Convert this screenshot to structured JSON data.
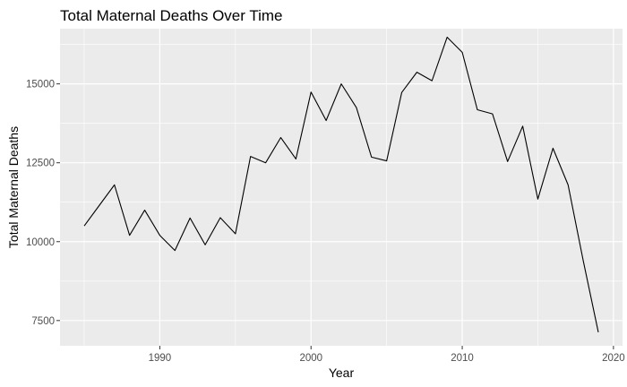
{
  "chart_data": {
    "type": "line",
    "title": "Total Maternal Deaths Over Time",
    "xlabel": "Year",
    "ylabel": "Total Maternal Deaths",
    "xlim": [
      1983.4,
      2020.6
    ],
    "ylim": [
      6700,
      16750
    ],
    "x_ticks": [
      1990,
      2000,
      2010,
      2020
    ],
    "y_ticks": [
      7500,
      10000,
      12500,
      15000
    ],
    "x_tick_labels": [
      "1990",
      "2000",
      "2010",
      "2020"
    ],
    "y_tick_labels": [
      "7500",
      "10000",
      "12500",
      "15000"
    ],
    "grid": true,
    "legend": "none",
    "colors": {
      "panel_background": "#ebebeb",
      "gridline": "#ffffff",
      "line": "#000000",
      "tick_text": "#4d4d4d"
    },
    "series": [
      {
        "x": [
          1985,
          1986,
          1987,
          1988,
          1989,
          1990,
          1991,
          1992,
          1993,
          1994,
          1995,
          1996,
          1997,
          1998,
          1999,
          2000,
          2001,
          2002,
          2003,
          2004,
          2005,
          2006,
          2007,
          2008,
          2009,
          2010,
          2011,
          2012,
          2013,
          2014,
          2015,
          2016,
          2017,
          2018,
          2019
        ],
        "values": [
          10500,
          11150,
          11800,
          10200,
          11000,
          10200,
          9720,
          10750,
          9900,
          10760,
          10250,
          12700,
          12500,
          13300,
          12620,
          14740,
          13840,
          15000,
          14250,
          12680,
          12560,
          14730,
          15370,
          15100,
          16480,
          16000,
          14180,
          14050,
          12540,
          13660,
          11350,
          12960,
          11800,
          9400,
          7130
        ]
      }
    ]
  }
}
